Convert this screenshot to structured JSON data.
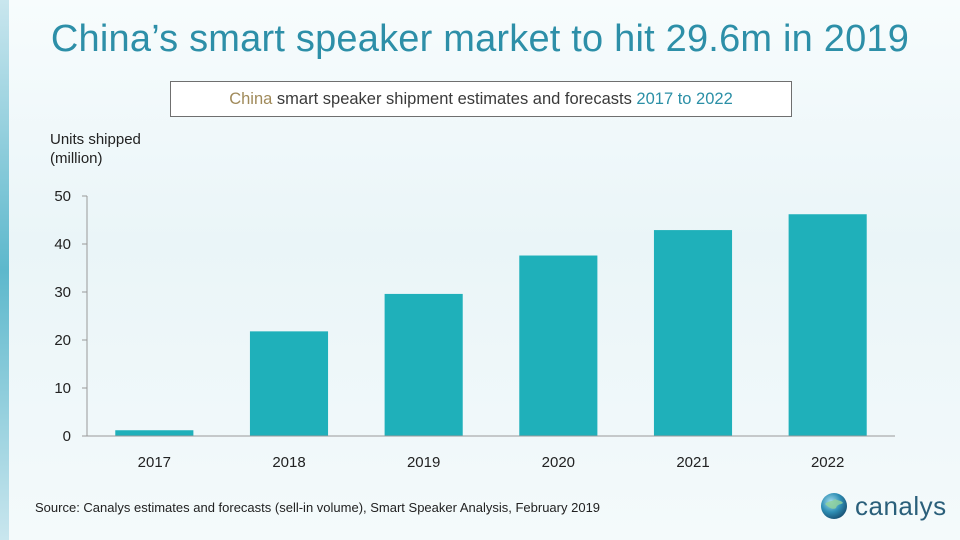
{
  "header": {
    "title": "China’s smart speaker market to hit 29.6m in 2019"
  },
  "subtitle": {
    "part1": "China",
    "part2": " smart speaker shipment estimates and forecasts ",
    "part3": "2017 to 2022"
  },
  "footer": {
    "source": "Source: Canalys estimates and forecasts (sell-in volume), Smart Speaker Analysis, February 2019",
    "logo_text": "canalys"
  },
  "colors": {
    "bar": "#1fb0ba",
    "title": "#2d8fa8",
    "axis": "#999999"
  },
  "chart_data": {
    "type": "bar",
    "title": "China’s smart speaker market to hit 29.6m in 2019",
    "subtitle": "China smart speaker shipment estimates and forecasts 2017 to 2022",
    "ylabel_line1": "Units shipped",
    "ylabel_line2": "(million)",
    "xlabel": "",
    "categories": [
      "2017",
      "2018",
      "2019",
      "2020",
      "2021",
      "2022"
    ],
    "values": [
      1.2,
      21.8,
      29.6,
      37.6,
      42.9,
      46.2
    ],
    "ylim": [
      0,
      50
    ],
    "yticks": [
      0,
      10,
      20,
      30,
      40,
      50
    ],
    "grid": false,
    "legend": "none"
  }
}
